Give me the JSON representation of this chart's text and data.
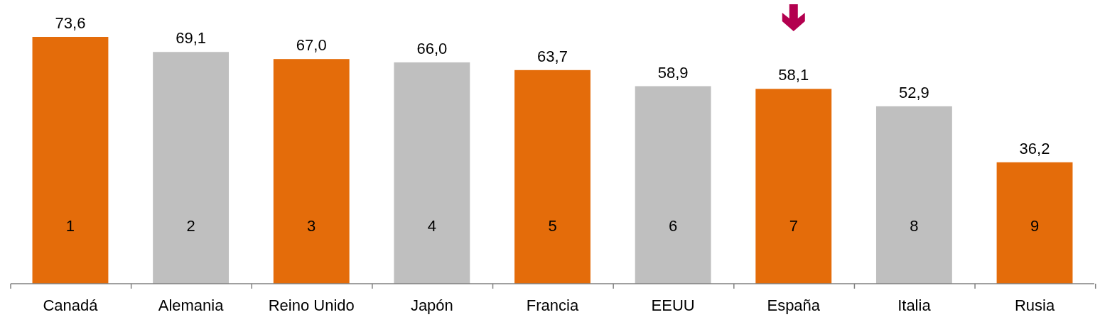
{
  "chart_data": {
    "type": "bar",
    "categories": [
      "Canadá",
      "Alemania",
      "Reino Unido",
      "Japón",
      "Francia",
      "EEUU",
      "España",
      "Italia",
      "Rusia"
    ],
    "values": [
      73.6,
      69.1,
      67.0,
      66.0,
      63.7,
      58.9,
      58.1,
      52.9,
      36.2
    ],
    "colors": [
      "#e46c0a",
      "#bfbfbf",
      "#e46c0a",
      "#bfbfbf",
      "#e46c0a",
      "#bfbfbf",
      "#e46c0a",
      "#bfbfbf",
      "#e46c0a"
    ],
    "value_labels": [
      "73,6",
      "69,1",
      "67,0",
      "66,0",
      "63,7",
      "58,9",
      "58,1",
      "52,9",
      "36,2"
    ],
    "annotations": [
      "1",
      "2",
      "3",
      "4",
      "5",
      "6",
      "7",
      "8",
      "9"
    ]
  }
}
